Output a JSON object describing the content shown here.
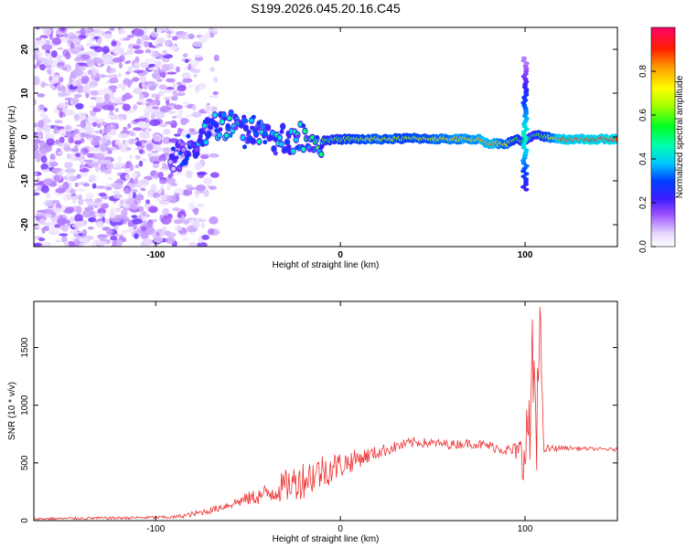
{
  "title": "S199.2026.045.20.16.C45",
  "chart_data": [
    {
      "type": "heatmap",
      "title": "S199.2026.045.20.16.C45",
      "xlabel": "Height of straight line (km)",
      "ylabel": "Frequency (Hz)",
      "xlim": [
        -166,
        150
      ],
      "ylim": [
        -25,
        25
      ],
      "xticks": [
        -100,
        0,
        100
      ],
      "yticks": [
        -20,
        -10,
        0,
        10,
        20
      ],
      "colorbar": {
        "label": "Normalized spectral amplitude",
        "range": [
          0,
          1
        ],
        "ticks": [
          0.0,
          0.2,
          0.4,
          0.6,
          0.8
        ],
        "tick_labels": [
          "0.0",
          "0.2",
          "0.4",
          "0.6",
          "0.8"
        ]
      },
      "ridge": {
        "x": [
          -90,
          -80,
          -70,
          -60,
          -50,
          -40,
          -30,
          -20,
          -10,
          0,
          20,
          40,
          60,
          75,
          80,
          90,
          95,
          100,
          105,
          120,
          140,
          150
        ],
        "freq": [
          -5,
          -3,
          2,
          3,
          1,
          0.5,
          -0.5,
          0,
          -1,
          -0.5,
          -0.5,
          -0.3,
          -0.5,
          -0.5,
          -1.5,
          -1.5,
          -0.5,
          -1,
          0.5,
          -0.5,
          -0.5,
          -0.5
        ],
        "amplitude": [
          0.15,
          0.25,
          0.35,
          0.4,
          0.35,
          0.35,
          0.35,
          0.4,
          0.5,
          0.6,
          0.7,
          0.65,
          0.75,
          0.8,
          0.85,
          0.7,
          0.6,
          0.5,
          0.5,
          0.85,
          0.9,
          0.9
        ]
      },
      "spike": {
        "x": 100,
        "freq_range": [
          -12,
          18
        ]
      }
    },
    {
      "type": "line",
      "xlabel": "Height of straight line (km)",
      "ylabel": "SNR (10 * v/v)",
      "xlim": [
        -166,
        150
      ],
      "ylim": [
        0,
        1900
      ],
      "xticks": [
        -100,
        0,
        100
      ],
      "yticks": [
        0,
        500,
        1000,
        1500
      ],
      "color": "#ee3333",
      "series": [
        {
          "name": "SNR",
          "x": [
            -166,
            -140,
            -110,
            -90,
            -80,
            -70,
            -60,
            -50,
            -40,
            -30,
            -20,
            -10,
            0,
            10,
            20,
            30,
            40,
            50,
            60,
            70,
            80,
            90,
            95,
            100,
            102,
            104,
            106,
            108,
            110,
            120,
            130,
            140,
            150
          ],
          "y": [
            15,
            20,
            25,
            30,
            55,
            90,
            140,
            190,
            230,
            300,
            360,
            430,
            480,
            540,
            590,
            640,
            680,
            670,
            660,
            670,
            650,
            610,
            600,
            560,
            800,
            1300,
            500,
            1850,
            620,
            630,
            625,
            620,
            615
          ],
          "noise": [
            10,
            12,
            12,
            15,
            25,
            30,
            40,
            60,
            90,
            140,
            170,
            160,
            120,
            80,
            60,
            50,
            45,
            40,
            40,
            40,
            45,
            50,
            80,
            250,
            400,
            500,
            450,
            300,
            40,
            20,
            15,
            15,
            15
          ]
        }
      ]
    }
  ]
}
